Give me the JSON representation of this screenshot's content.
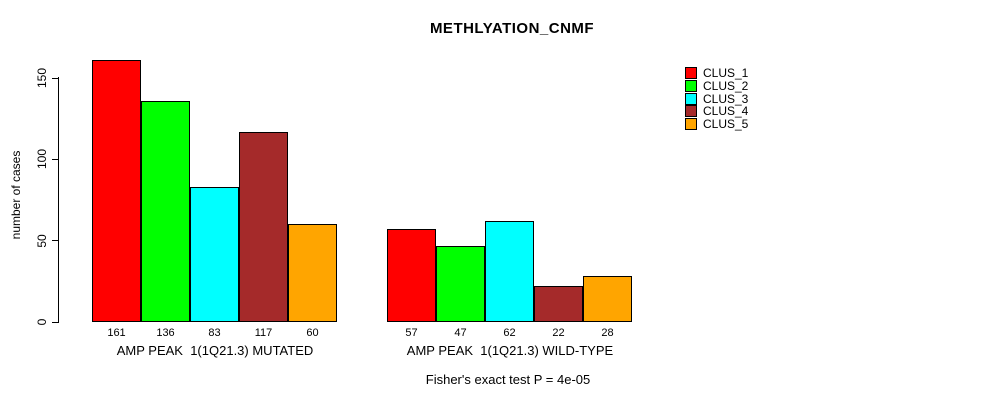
{
  "title": "METHLYATION_CNMF",
  "caption": "Fisher's exact test P = 4e-05",
  "y_axis": {
    "label": "number of cases",
    "tick_labels": [
      "0",
      "50",
      "100",
      "150"
    ]
  },
  "legend": {
    "position": "right",
    "items": [
      {
        "label": "CLUS_1",
        "color": "#FF0000"
      },
      {
        "label": "CLUS_2",
        "color": "#00FF00"
      },
      {
        "label": "CLUS_3",
        "color": "#00FFFF"
      },
      {
        "label": "CLUS_4",
        "color": "#A52A2A"
      },
      {
        "label": "CLUS_5",
        "color": "#FFA500"
      }
    ]
  },
  "chart_data": {
    "type": "bar",
    "title": "METHLYATION_CNMF",
    "xlabel": "",
    "ylabel": "number of cases",
    "ylim": [
      0,
      150
    ],
    "yticks": [
      0,
      50,
      100,
      150
    ],
    "grid": false,
    "legend_position": "right",
    "categories": [
      "AMP PEAK  1(1Q21.3) MUTATED",
      "AMP PEAK  1(1Q21.3) WILD-TYPE"
    ],
    "series": [
      {
        "name": "CLUS_1",
        "color": "#FF0000",
        "values": [
          161,
          57
        ]
      },
      {
        "name": "CLUS_2",
        "color": "#00FF00",
        "values": [
          136,
          47
        ]
      },
      {
        "name": "CLUS_3",
        "color": "#00FFFF",
        "values": [
          83,
          62
        ]
      },
      {
        "name": "CLUS_4",
        "color": "#A52A2A",
        "values": [
          117,
          22
        ]
      },
      {
        "name": "CLUS_5",
        "color": "#FFA500",
        "values": [
          60,
          28
        ]
      }
    ],
    "value_labels_shown": true,
    "annotation": "Fisher's exact test P = 4e-05"
  }
}
